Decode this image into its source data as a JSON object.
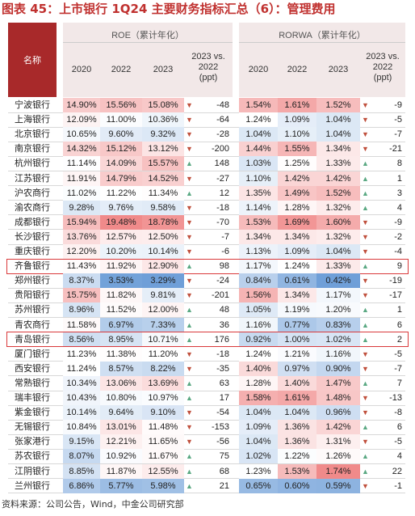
{
  "title": "图表 45：上市银行 1Q24 主要财务指标汇总（6）：管理费用",
  "header": {
    "name_label": "名称",
    "roe_label": "ROE（累计年化）",
    "rorwa_label": "RORWA（累计年化）",
    "years": [
      "2020",
      "2022",
      "2023"
    ],
    "change_label_line1": "2023 vs.",
    "change_label_line2": "2022",
    "change_label_line3": "(ppt)"
  },
  "rows": [
    {
      "name": "宁波银行",
      "roe": [
        "14.90%",
        "15.56%",
        "15.08%"
      ],
      "roe_chg": "-48",
      "roe_dir": "down",
      "rorwa": [
        "1.54%",
        "1.61%",
        "1.52%"
      ],
      "rorwa_chg": "-9",
      "rorwa_dir": "down"
    },
    {
      "name": "上海银行",
      "roe": [
        "12.09%",
        "11.00%",
        "10.36%"
      ],
      "roe_chg": "-64",
      "roe_dir": "down",
      "rorwa": [
        "1.24%",
        "1.09%",
        "1.04%"
      ],
      "rorwa_chg": "-5",
      "rorwa_dir": "down"
    },
    {
      "name": "北京银行",
      "roe": [
        "10.65%",
        "9.60%",
        "9.32%"
      ],
      "roe_chg": "-28",
      "roe_dir": "down",
      "rorwa": [
        "1.04%",
        "1.10%",
        "1.04%"
      ],
      "rorwa_chg": "-7",
      "rorwa_dir": "down"
    },
    {
      "name": "南京银行",
      "roe": [
        "14.32%",
        "15.12%",
        "13.12%"
      ],
      "roe_chg": "-200",
      "roe_dir": "down",
      "rorwa": [
        "1.44%",
        "1.55%",
        "1.34%"
      ],
      "rorwa_chg": "-21",
      "rorwa_dir": "down"
    },
    {
      "name": "杭州银行",
      "roe": [
        "11.14%",
        "14.09%",
        "15.57%"
      ],
      "roe_chg": "148",
      "roe_dir": "up",
      "rorwa": [
        "1.03%",
        "1.25%",
        "1.33%"
      ],
      "rorwa_chg": "8",
      "rorwa_dir": "up"
    },
    {
      "name": "江苏银行",
      "roe": [
        "11.91%",
        "14.79%",
        "14.52%"
      ],
      "roe_chg": "-27",
      "roe_dir": "down",
      "rorwa": [
        "1.10%",
        "1.42%",
        "1.42%"
      ],
      "rorwa_chg": "1",
      "rorwa_dir": "up"
    },
    {
      "name": "沪农商行",
      "roe": [
        "11.02%",
        "11.22%",
        "11.34%"
      ],
      "roe_chg": "12",
      "roe_dir": "up",
      "rorwa": [
        "1.35%",
        "1.49%",
        "1.52%"
      ],
      "rorwa_chg": "3",
      "rorwa_dir": "up"
    },
    {
      "name": "渝农商行",
      "roe": [
        "9.28%",
        "9.76%",
        "9.58%"
      ],
      "roe_chg": "-18",
      "roe_dir": "down",
      "rorwa": [
        "1.14%",
        "1.28%",
        "1.32%"
      ],
      "rorwa_chg": "4",
      "rorwa_dir": "up"
    },
    {
      "name": "成都银行",
      "roe": [
        "15.94%",
        "19.48%",
        "18.78%"
      ],
      "roe_chg": "-70",
      "roe_dir": "down",
      "rorwa": [
        "1.53%",
        "1.69%",
        "1.60%"
      ],
      "rorwa_chg": "-9",
      "rorwa_dir": "down"
    },
    {
      "name": "长沙银行",
      "roe": [
        "13.76%",
        "12.57%",
        "12.50%"
      ],
      "roe_chg": "-7",
      "roe_dir": "down",
      "rorwa": [
        "1.34%",
        "1.34%",
        "1.32%"
      ],
      "rorwa_chg": "-2",
      "rorwa_dir": "down"
    },
    {
      "name": "重庆银行",
      "roe": [
        "12.20%",
        "10.20%",
        "10.14%"
      ],
      "roe_chg": "-6",
      "roe_dir": "down",
      "rorwa": [
        "1.13%",
        "1.09%",
        "1.04%"
      ],
      "rorwa_chg": "-4",
      "rorwa_dir": "down"
    },
    {
      "name": "齐鲁银行",
      "roe": [
        "11.43%",
        "11.92%",
        "12.90%"
      ],
      "roe_chg": "98",
      "roe_dir": "up",
      "rorwa": [
        "1.17%",
        "1.24%",
        "1.33%"
      ],
      "rorwa_chg": "9",
      "rorwa_dir": "up"
    },
    {
      "name": "郑州银行",
      "roe": [
        "8.37%",
        "3.53%",
        "3.29%"
      ],
      "roe_chg": "-24",
      "roe_dir": "down",
      "rorwa": [
        "0.84%",
        "0.61%",
        "0.42%"
      ],
      "rorwa_chg": "-19",
      "rorwa_dir": "down"
    },
    {
      "name": "贵阳银行",
      "roe": [
        "15.75%",
        "11.82%",
        "9.81%"
      ],
      "roe_chg": "-201",
      "roe_dir": "down",
      "rorwa": [
        "1.56%",
        "1.34%",
        "1.17%"
      ],
      "rorwa_chg": "-17",
      "rorwa_dir": "down"
    },
    {
      "name": "苏州银行",
      "roe": [
        "8.96%",
        "11.52%",
        "12.00%"
      ],
      "roe_chg": "48",
      "roe_dir": "up",
      "rorwa": [
        "1.05%",
        "1.19%",
        "1.20%"
      ],
      "rorwa_chg": "1",
      "rorwa_dir": "up"
    },
    {
      "name": "青农商行",
      "roe": [
        "11.58%",
        "6.97%",
        "7.33%"
      ],
      "roe_chg": "36",
      "roe_dir": "up",
      "rorwa": [
        "1.16%",
        "0.77%",
        "0.83%"
      ],
      "rorwa_chg": "6",
      "rorwa_dir": "up"
    },
    {
      "name": "青岛银行",
      "roe": [
        "8.56%",
        "8.95%",
        "10.71%"
      ],
      "roe_chg": "176",
      "roe_dir": "up",
      "rorwa": [
        "0.92%",
        "1.00%",
        "1.02%"
      ],
      "rorwa_chg": "2",
      "rorwa_dir": "up"
    },
    {
      "name": "厦门银行",
      "roe": [
        "11.23%",
        "11.38%",
        "11.20%"
      ],
      "roe_chg": "-18",
      "roe_dir": "down",
      "rorwa": [
        "1.24%",
        "1.21%",
        "1.16%"
      ],
      "rorwa_chg": "-5",
      "rorwa_dir": "down"
    },
    {
      "name": "西安银行",
      "roe": [
        "11.24%",
        "8.57%",
        "8.22%"
      ],
      "roe_chg": "-35",
      "roe_dir": "down",
      "rorwa": [
        "1.40%",
        "0.97%",
        "0.90%"
      ],
      "rorwa_chg": "-7",
      "rorwa_dir": "down"
    },
    {
      "name": "常熟银行",
      "roe": [
        "10.34%",
        "13.06%",
        "13.69%"
      ],
      "roe_chg": "63",
      "roe_dir": "up",
      "rorwa": [
        "1.28%",
        "1.40%",
        "1.47%"
      ],
      "rorwa_chg": "7",
      "rorwa_dir": "up"
    },
    {
      "name": "瑞丰银行",
      "roe": [
        "10.43%",
        "10.80%",
        "10.97%"
      ],
      "roe_chg": "17",
      "roe_dir": "up",
      "rorwa": [
        "1.58%",
        "1.61%",
        "1.48%"
      ],
      "rorwa_chg": "-13",
      "rorwa_dir": "down"
    },
    {
      "name": "紫金银行",
      "roe": [
        "10.14%",
        "9.64%",
        "9.10%"
      ],
      "roe_chg": "-54",
      "roe_dir": "down",
      "rorwa": [
        "1.04%",
        "1.04%",
        "0.96%"
      ],
      "rorwa_chg": "-8",
      "rorwa_dir": "down"
    },
    {
      "name": "无锡银行",
      "roe": [
        "10.84%",
        "13.01%",
        "11.48%"
      ],
      "roe_chg": "-153",
      "roe_dir": "down",
      "rorwa": [
        "1.09%",
        "1.36%",
        "1.42%"
      ],
      "rorwa_chg": "6",
      "rorwa_dir": "up"
    },
    {
      "name": "张家港行",
      "roe": [
        "9.15%",
        "12.21%",
        "11.65%"
      ],
      "roe_chg": "-56",
      "roe_dir": "down",
      "rorwa": [
        "1.04%",
        "1.36%",
        "1.31%"
      ],
      "rorwa_chg": "-5",
      "rorwa_dir": "down"
    },
    {
      "name": "苏农银行",
      "roe": [
        "8.07%",
        "10.92%",
        "11.67%"
      ],
      "roe_chg": "75",
      "roe_dir": "up",
      "rorwa": [
        "1.02%",
        "1.22%",
        "1.26%"
      ],
      "rorwa_chg": "4",
      "rorwa_dir": "up"
    },
    {
      "name": "江阴银行",
      "roe": [
        "8.85%",
        "11.87%",
        "12.55%"
      ],
      "roe_chg": "68",
      "roe_dir": "up",
      "rorwa": [
        "1.23%",
        "1.53%",
        "1.74%"
      ],
      "rorwa_chg": "22",
      "rorwa_dir": "up"
    },
    {
      "name": "兰州银行",
      "roe": [
        "6.86%",
        "5.77%",
        "5.98%"
      ],
      "roe_chg": "21",
      "roe_dir": "up",
      "rorwa": [
        "0.65%",
        "0.60%",
        "0.59%"
      ],
      "rorwa_chg": "-1",
      "rorwa_dir": "down"
    }
  ],
  "highlighted_rows": [
    "齐鲁银行",
    "青岛银行"
  ],
  "colors": {
    "header_red": "#a8292a",
    "title_red": "#c0312f",
    "up_green": "#5aa882",
    "down_red": "#c0503d",
    "heat_high": "#f08a8a",
    "heat_low": "#6f9fd8",
    "highlight_box": "#d9383a"
  },
  "footer": {
    "source": "资料来源：公司公告，Wind，中金公司研究部"
  }
}
